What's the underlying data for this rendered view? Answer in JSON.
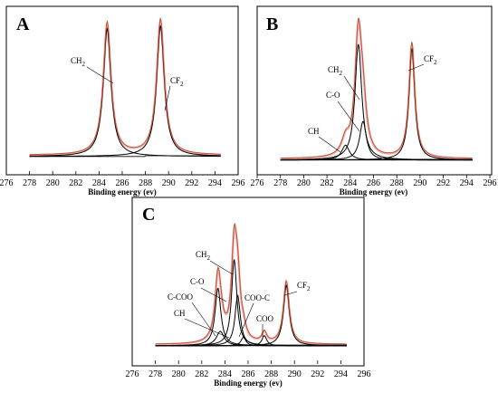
{
  "colors": {
    "frame": "#000000",
    "experimental": "#c0503a",
    "fit_envelope": "#f2b7b0",
    "component": "#000000"
  },
  "chart_data": [
    {
      "panel_label": "A",
      "type": "line",
      "xlabel": "Binding energy (ev)",
      "xlim": [
        276,
        296
      ],
      "xticks": [
        276,
        278,
        280,
        282,
        284,
        286,
        288,
        290,
        292,
        294,
        296
      ],
      "components": [
        {
          "name": "CH2",
          "center": 284.7,
          "height": 0.88,
          "width": 0.8
        },
        {
          "name": "CF2",
          "center": 289.3,
          "height": 0.9,
          "width": 0.8
        }
      ],
      "baseline": 0.02,
      "annotations": [
        {
          "label": "CH",
          "sub": "2",
          "x": 283.7
        },
        {
          "label": "CF",
          "sub": "2",
          "x": 289.3
        }
      ]
    },
    {
      "panel_label": "B",
      "type": "line",
      "xlabel": "Binding energy (ev)",
      "xlim": [
        276,
        296
      ],
      "xticks": [
        276,
        278,
        280,
        282,
        284,
        286,
        288,
        290,
        292,
        294,
        296
      ],
      "components": [
        {
          "name": "CH",
          "center": 283.6,
          "height": 0.1,
          "width": 0.8
        },
        {
          "name": "C-O",
          "center": 285.1,
          "height": 0.26,
          "width": 0.7
        },
        {
          "name": "CH2",
          "center": 284.7,
          "height": 0.78,
          "width": 0.7
        },
        {
          "name": "CF2",
          "center": 289.3,
          "height": 0.75,
          "width": 0.6
        }
      ],
      "baseline": 0.02,
      "annotations": [
        {
          "label": "CH",
          "sub": "2",
          "x": 284.8
        },
        {
          "label": "C-O",
          "sub": "",
          "x": 284.8
        },
        {
          "label": "CH",
          "sub": "",
          "x": 283.5
        },
        {
          "label": "CF",
          "sub": "2",
          "x": 289.3
        }
      ]
    },
    {
      "panel_label": "C",
      "type": "line",
      "xlabel": "Binding energy (ev)",
      "xlim": [
        276,
        296
      ],
      "xticks": [
        276,
        278,
        280,
        282,
        284,
        286,
        288,
        290,
        292,
        294,
        296
      ],
      "components": [
        {
          "name": "CH",
          "center": 283.6,
          "height": 0.1,
          "width": 0.8
        },
        {
          "name": "C-COO",
          "center": 283.4,
          "height": 0.4,
          "width": 0.6
        },
        {
          "name": "C-O",
          "center": 285.1,
          "height": 0.35,
          "width": 0.55
        },
        {
          "name": "CH2",
          "center": 284.8,
          "height": 0.6,
          "width": 0.55
        },
        {
          "name": "COO-C",
          "center": 285.6,
          "height": 0.06,
          "width": 0.5
        },
        {
          "name": "COO",
          "center": 287.4,
          "height": 0.07,
          "width": 0.5
        },
        {
          "name": "CF2",
          "center": 289.3,
          "height": 0.42,
          "width": 0.6
        }
      ],
      "baseline": 0.02,
      "annotations": [
        {
          "label": "CH",
          "sub": "2",
          "x": 284.6
        },
        {
          "label": "C-O",
          "sub": "",
          "x": 284.0
        },
        {
          "label": "C-COO",
          "sub": "",
          "x": 283.0
        },
        {
          "label": "CH",
          "sub": "",
          "x": 284.0
        },
        {
          "label": "COO-C",
          "sub": "",
          "x": 285.8
        },
        {
          "label": "COO",
          "sub": "",
          "x": 287.3
        },
        {
          "label": "CF",
          "sub": "2",
          "x": 289.4
        }
      ]
    }
  ]
}
